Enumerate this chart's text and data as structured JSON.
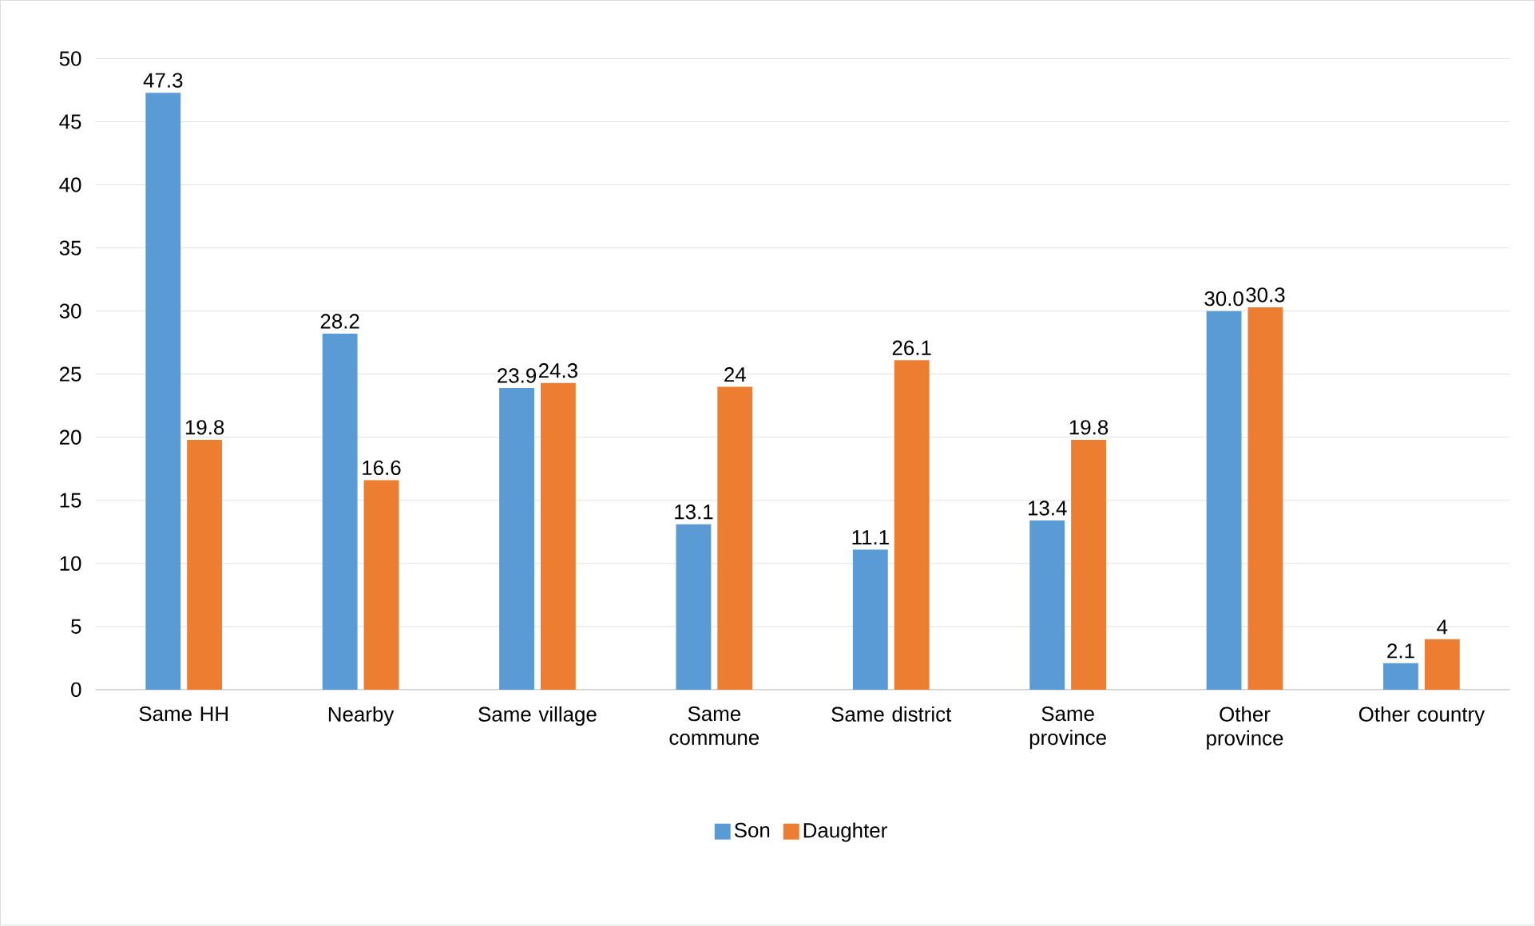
{
  "chart_data": {
    "type": "bar",
    "categories": [
      "Same HH",
      "Nearby",
      "Same village",
      "Same commune",
      "Same district",
      "Same province",
      "Other province",
      "Other country"
    ],
    "series": [
      {
        "name": "Son",
        "color": "#5b9bd5",
        "values": [
          47.3,
          28.2,
          23.9,
          13.1,
          11.1,
          13.4,
          30.0,
          2.1
        ],
        "value_labels": [
          "47.3",
          "28.2",
          "23.9",
          "13.1",
          "11.1",
          "13.4",
          "30.0",
          "2.1"
        ]
      },
      {
        "name": "Daughter",
        "color": "#ed7d31",
        "values": [
          19.8,
          16.6,
          24.3,
          24,
          26.1,
          19.8,
          30.3,
          4
        ],
        "value_labels": [
          "19.8",
          "16.6",
          "24.3",
          "24",
          "26.1",
          "19.8",
          "30.3",
          "4"
        ]
      }
    ],
    "ylim": [
      0,
      50
    ],
    "yticks": [
      0,
      5,
      10,
      15,
      20,
      25,
      30,
      35,
      40,
      45,
      50
    ],
    "grid": "y",
    "legend": "bottom"
  }
}
